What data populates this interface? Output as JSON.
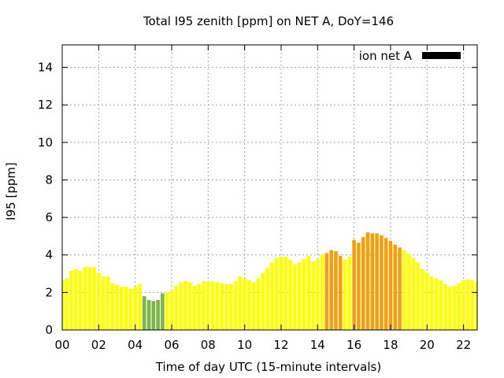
{
  "chart_data": {
    "type": "bar",
    "title": "Total I95 zenith [ppm] on NET A, DoY=146",
    "xlabel": "Time of day UTC (15-minute intervals)",
    "ylabel": "I95 [ppm]",
    "xlim": [
      0,
      22.75
    ],
    "ylim": [
      0,
      15.2
    ],
    "xticks": [
      "00",
      "02",
      "04",
      "06",
      "08",
      "10",
      "12",
      "14",
      "16",
      "18",
      "20",
      "22"
    ],
    "yticks": [
      "0",
      "2",
      "4",
      "6",
      "8",
      "10",
      "12",
      "14"
    ],
    "grid": true,
    "legend": {
      "label": "ion net A",
      "color": "#000000",
      "placement": "top-right"
    },
    "interval_hours": 0.25,
    "colors": {
      "yellow": "#ffff00",
      "green": "#7ab648",
      "orange": "#f2a00f"
    },
    "series": [
      {
        "name": "ion net A",
        "values": [
          2.65,
          2.75,
          3.15,
          3.25,
          3.15,
          3.35,
          3.35,
          3.35,
          3.05,
          2.85,
          2.85,
          2.5,
          2.4,
          2.3,
          2.3,
          2.2,
          2.3,
          2.45,
          1.8,
          1.6,
          1.55,
          1.6,
          1.95,
          2.0,
          2.1,
          2.35,
          2.55,
          2.6,
          2.55,
          2.35,
          2.45,
          2.6,
          2.55,
          2.6,
          2.55,
          2.5,
          2.45,
          2.45,
          2.6,
          2.85,
          2.75,
          2.65,
          2.55,
          2.75,
          3.05,
          3.3,
          3.6,
          3.85,
          3.9,
          3.9,
          3.75,
          3.5,
          3.6,
          3.8,
          3.95,
          3.65,
          3.75,
          4.0,
          4.1,
          4.25,
          4.2,
          3.95,
          3.75,
          3.9,
          4.8,
          4.65,
          4.95,
          5.2,
          5.15,
          5.15,
          5.05,
          4.9,
          4.75,
          4.55,
          4.4,
          4.25,
          4.05,
          3.85,
          3.6,
          3.25,
          3.05,
          2.85,
          2.75,
          2.65,
          2.45,
          2.3,
          2.35,
          2.5,
          2.65,
          2.7,
          2.65,
          2.55,
          2.65
        ],
        "categories": [
          "y",
          "y",
          "y",
          "y",
          "y",
          "y",
          "y",
          "y",
          "y",
          "y",
          "y",
          "y",
          "y",
          "y",
          "y",
          "y",
          "y",
          "y",
          "g",
          "g",
          "g",
          "g",
          "g",
          "y",
          "y",
          "y",
          "y",
          "y",
          "y",
          "y",
          "y",
          "y",
          "y",
          "y",
          "y",
          "y",
          "y",
          "y",
          "y",
          "y",
          "y",
          "y",
          "y",
          "y",
          "y",
          "y",
          "y",
          "y",
          "y",
          "y",
          "y",
          "y",
          "y",
          "y",
          "y",
          "y",
          "y",
          "y",
          "o",
          "o",
          "o",
          "o",
          "y",
          "y",
          "o",
          "o",
          "o",
          "o",
          "o",
          "o",
          "o",
          "o",
          "o",
          "o",
          "o",
          "y",
          "y",
          "y",
          "y",
          "y",
          "y",
          "y",
          "y",
          "y",
          "y",
          "y",
          "y",
          "y",
          "y",
          "y",
          "y",
          "y",
          "y"
        ]
      }
    ]
  }
}
